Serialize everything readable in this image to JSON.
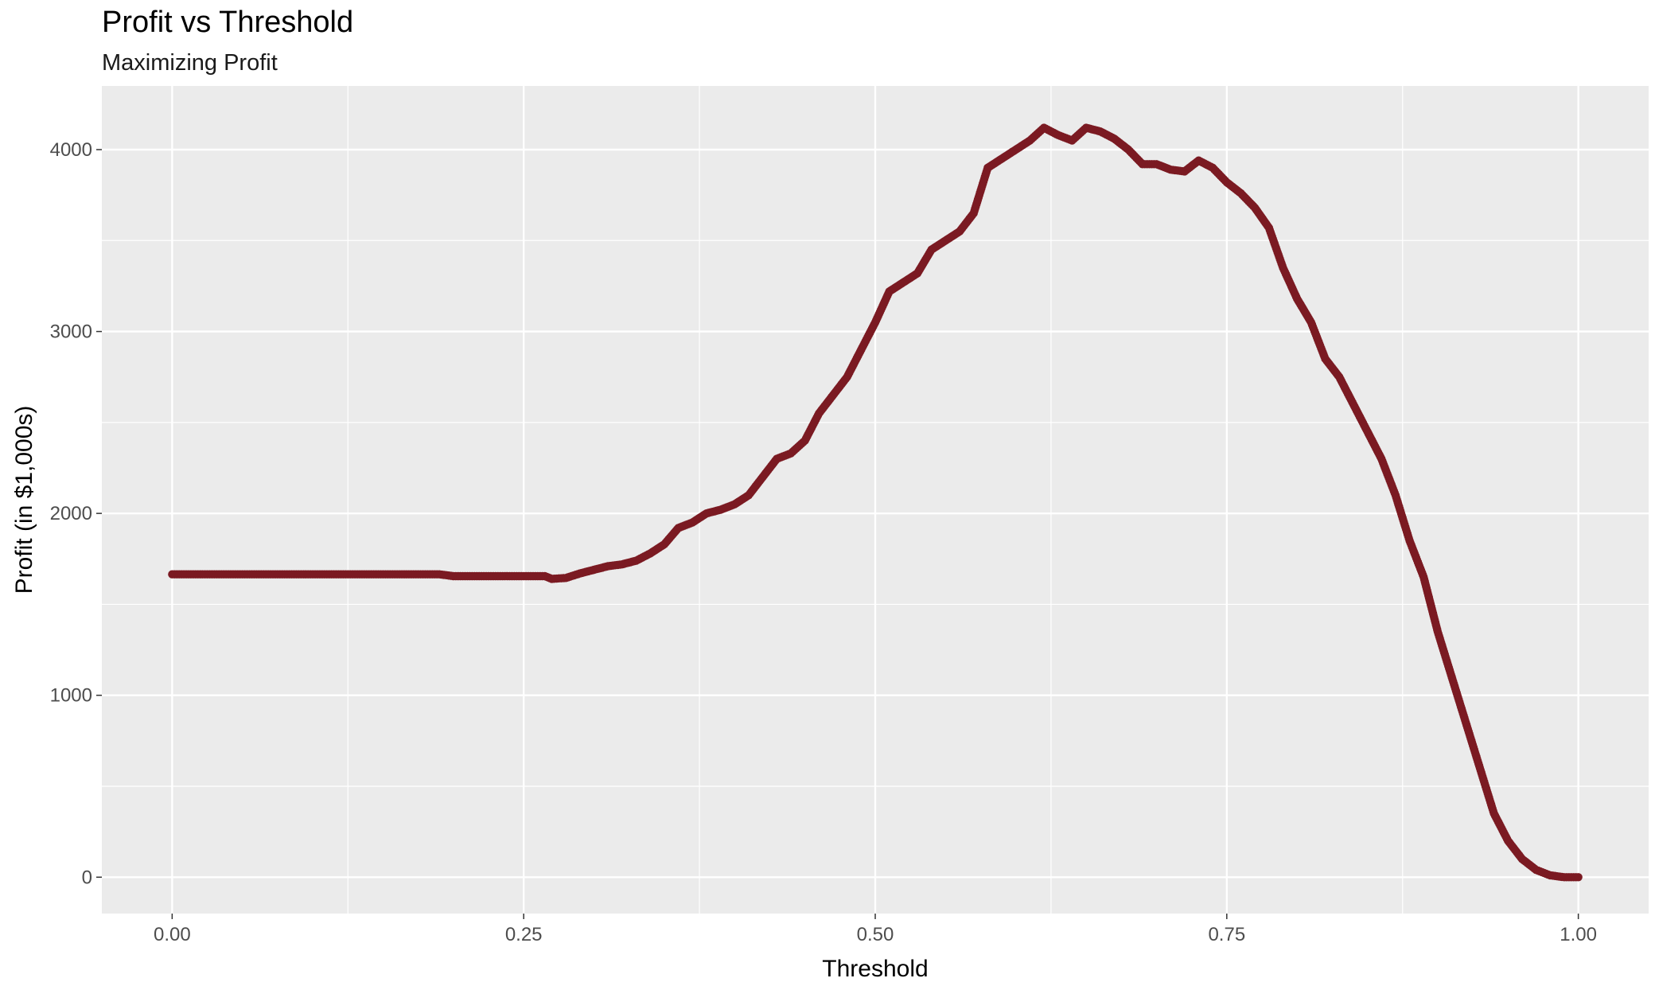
{
  "chart_data": {
    "type": "scatter",
    "title": "Profit vs Threshold",
    "subtitle": "Maximizing Profit",
    "xlabel": "Threshold",
    "ylabel": "Profit (in $1,000s)",
    "xlim": [
      -0.05,
      1.05
    ],
    "ylim": [
      -200,
      4350
    ],
    "xticks": [
      0.0,
      0.25,
      0.5,
      0.75,
      1.0
    ],
    "xtick_labels": [
      "0.00",
      "0.25",
      "0.50",
      "0.75",
      "1.00"
    ],
    "yticks": [
      0,
      1000,
      2000,
      3000,
      4000
    ],
    "ytick_labels": [
      "0",
      "1000",
      "2000",
      "3000",
      "4000"
    ],
    "grid": true,
    "legend": "none",
    "point_color": "#7B1A22",
    "panel_color": "#EBEBEB",
    "curve": [
      [
        0.0,
        1665
      ],
      [
        0.05,
        1665
      ],
      [
        0.1,
        1665
      ],
      [
        0.15,
        1665
      ],
      [
        0.19,
        1665
      ],
      [
        0.2,
        1655
      ],
      [
        0.25,
        1655
      ],
      [
        0.265,
        1655
      ],
      [
        0.27,
        1640
      ],
      [
        0.28,
        1645
      ],
      [
        0.29,
        1670
      ],
      [
        0.3,
        1690
      ],
      [
        0.31,
        1710
      ],
      [
        0.32,
        1720
      ],
      [
        0.33,
        1740
      ],
      [
        0.34,
        1780
      ],
      [
        0.35,
        1830
      ],
      [
        0.36,
        1920
      ],
      [
        0.37,
        1950
      ],
      [
        0.38,
        2000
      ],
      [
        0.39,
        2020
      ],
      [
        0.4,
        2050
      ],
      [
        0.41,
        2100
      ],
      [
        0.42,
        2200
      ],
      [
        0.43,
        2300
      ],
      [
        0.44,
        2330
      ],
      [
        0.45,
        2400
      ],
      [
        0.46,
        2550
      ],
      [
        0.47,
        2650
      ],
      [
        0.48,
        2750
      ],
      [
        0.49,
        2900
      ],
      [
        0.5,
        3050
      ],
      [
        0.51,
        3220
      ],
      [
        0.52,
        3270
      ],
      [
        0.53,
        3320
      ],
      [
        0.54,
        3450
      ],
      [
        0.55,
        3500
      ],
      [
        0.56,
        3550
      ],
      [
        0.57,
        3650
      ],
      [
        0.58,
        3900
      ],
      [
        0.59,
        3950
      ],
      [
        0.6,
        4000
      ],
      [
        0.61,
        4050
      ],
      [
        0.62,
        4120
      ],
      [
        0.63,
        4080
      ],
      [
        0.64,
        4050
      ],
      [
        0.65,
        4120
      ],
      [
        0.66,
        4100
      ],
      [
        0.67,
        4060
      ],
      [
        0.68,
        4000
      ],
      [
        0.69,
        3920
      ],
      [
        0.7,
        3920
      ],
      [
        0.71,
        3890
      ],
      [
        0.72,
        3880
      ],
      [
        0.73,
        3940
      ],
      [
        0.74,
        3900
      ],
      [
        0.75,
        3820
      ],
      [
        0.76,
        3760
      ],
      [
        0.77,
        3680
      ],
      [
        0.78,
        3570
      ],
      [
        0.79,
        3350
      ],
      [
        0.8,
        3180
      ],
      [
        0.81,
        3050
      ],
      [
        0.82,
        2850
      ],
      [
        0.83,
        2750
      ],
      [
        0.84,
        2600
      ],
      [
        0.85,
        2450
      ],
      [
        0.86,
        2300
      ],
      [
        0.87,
        2100
      ],
      [
        0.88,
        1850
      ],
      [
        0.89,
        1650
      ],
      [
        0.9,
        1350
      ],
      [
        0.91,
        1100
      ],
      [
        0.92,
        850
      ],
      [
        0.93,
        600
      ],
      [
        0.94,
        350
      ],
      [
        0.95,
        200
      ],
      [
        0.96,
        100
      ],
      [
        0.97,
        40
      ],
      [
        0.98,
        10
      ],
      [
        0.99,
        0
      ],
      [
        1.0,
        0
      ]
    ]
  }
}
